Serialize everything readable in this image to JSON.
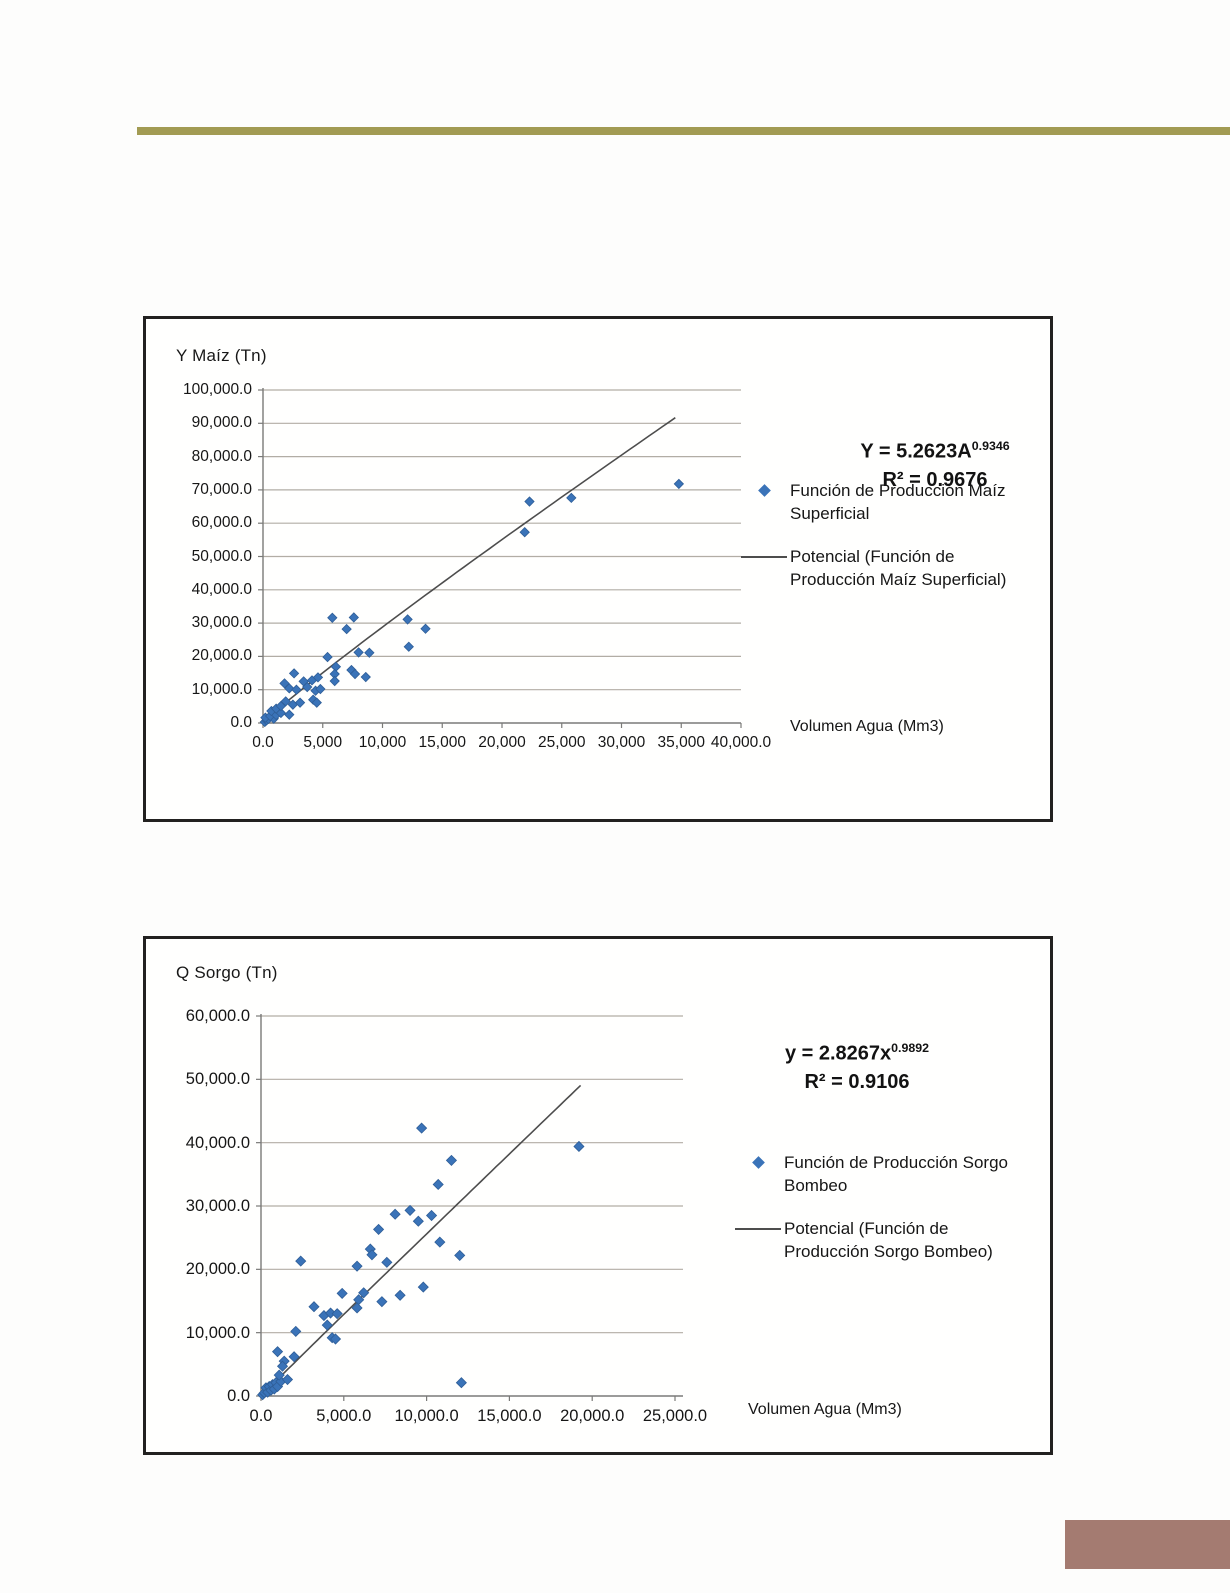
{
  "page": {
    "top_rule_color": "#a29b53",
    "corner_block_color": "#a47b71",
    "marker_color": "#3a73b8",
    "marker_edge_color": "#2f5e97",
    "trendline_color": "#4d4d4d",
    "grid_color": "#b2ada5",
    "axis_color": "#7a7a78"
  },
  "charts": [
    {
      "title": "Y Maíz (Tn)",
      "equation": {
        "base": "Y = 5.2623A",
        "exponent": "0.9346"
      },
      "r_squared": "R² = 0.9676",
      "x_axis_label": "Volumen Agua (Mm3)",
      "legend": [
        {
          "marker": "diamond",
          "label": "Función de Producción Maíz Superficial"
        },
        {
          "marker": "line",
          "label": "Potencial (Función de Producción Maíz Superficial)"
        }
      ],
      "y_tick_labels": [
        "100,000.0",
        "90,000.0",
        "80,000.0",
        "70,000.0",
        "60,000.0",
        "50,000.0",
        "40,000.0",
        "30,000.0",
        "20,000.0",
        "10,000.0",
        "0.0"
      ],
      "x_tick_labels": [
        "0.0",
        "5,000",
        "10,000",
        "15,000",
        "20,000",
        "25,000",
        "30,000",
        "35,000",
        "40,000.0"
      ]
    },
    {
      "title": "Q Sorgo (Tn)",
      "equation": {
        "base": "y = 2.8267x",
        "exponent": "0.9892"
      },
      "r_squared": "R² = 0.9106",
      "x_axis_label": "Volumen Agua (Mm3)",
      "legend": [
        {
          "marker": "diamond",
          "label": "Función de Producción Sorgo Bombeo"
        },
        {
          "marker": "line",
          "label": "Potencial (Función de Producción Sorgo Bombeo)"
        }
      ],
      "y_tick_labels": [
        "60,000.0",
        "50,000.0",
        "40,000.0",
        "30,000.0",
        "20,000.0",
        "10,000.0",
        "0.0"
      ],
      "x_tick_labels": [
        "0.0",
        "5,000.0",
        "10,000.0",
        "15,000.0",
        "20,000.0",
        "25,000.0"
      ]
    }
  ],
  "chart_data": [
    {
      "type": "scatter",
      "title": "Y Maíz (Tn)",
      "xlabel": "Volumen Agua (Mm3)",
      "ylabel": "Y Maíz (Tn)",
      "xlim": [
        0,
        40000
      ],
      "ylim": [
        0,
        100000
      ],
      "grid": true,
      "legend_position": "right",
      "equation": "Y = 5.2623A^0.9346",
      "r2": 0.9676,
      "series": [
        {
          "name": "Función de Producción Maíz Superficial",
          "points": [
            [
              150,
              300
            ],
            [
              300,
              800
            ],
            [
              450,
              1200
            ],
            [
              200,
              1600
            ],
            [
              900,
              1300
            ],
            [
              600,
              2100
            ],
            [
              1100,
              2400
            ],
            [
              1500,
              3000
            ],
            [
              2200,
              2500
            ],
            [
              700,
              3600
            ],
            [
              1100,
              4300
            ],
            [
              1500,
              5100
            ],
            [
              1900,
              6500
            ],
            [
              2500,
              5500
            ],
            [
              3100,
              6100
            ],
            [
              4200,
              7000
            ],
            [
              4500,
              6100
            ],
            [
              2200,
              10400
            ],
            [
              2800,
              10000
            ],
            [
              1800,
              11900
            ],
            [
              2600,
              14900
            ],
            [
              3400,
              12500
            ],
            [
              4100,
              12800
            ],
            [
              4600,
              13700
            ],
            [
              3700,
              10800
            ],
            [
              4400,
              9700
            ],
            [
              4800,
              10200
            ],
            [
              5400,
              19800
            ],
            [
              5800,
              31600
            ],
            [
              7600,
              31700
            ],
            [
              7000,
              28200
            ],
            [
              6100,
              16900
            ],
            [
              6000,
              14700
            ],
            [
              6000,
              12600
            ],
            [
              7400,
              15900
            ],
            [
              7700,
              14700
            ],
            [
              8600,
              13800
            ],
            [
              8000,
              21200
            ],
            [
              8900,
              21100
            ],
            [
              12100,
              31100
            ],
            [
              13600,
              28300
            ],
            [
              12200,
              22900
            ],
            [
              21900,
              57300
            ],
            [
              22300,
              66500
            ],
            [
              25800,
              67600
            ],
            [
              34800,
              71800
            ]
          ]
        }
      ],
      "trendline": {
        "kind": "power",
        "a": 5.2623,
        "b": 0.9346,
        "x_min": 150,
        "x_max": 34500,
        "name": "Potencial (Función de Producción Maíz Superficial)"
      }
    },
    {
      "type": "scatter",
      "title": "Q Sorgo (Tn)",
      "xlabel": "Volumen Agua (Mm3)",
      "ylabel": "Q Sorgo (Tn)",
      "xlim": [
        0,
        25000
      ],
      "ylim": [
        0,
        60000
      ],
      "grid": true,
      "legend_position": "right",
      "equation": "y = 2.8267x^0.9892",
      "r2": 0.9106,
      "series": [
        {
          "name": "Función de Producción Sorgo Bombeo",
          "points": [
            [
              100,
              200
            ],
            [
              200,
              500
            ],
            [
              300,
              1300
            ],
            [
              400,
              600
            ],
            [
              500,
              1500
            ],
            [
              600,
              900
            ],
            [
              700,
              1800
            ],
            [
              800,
              1100
            ],
            [
              900,
              2100
            ],
            [
              1000,
              1500
            ],
            [
              1200,
              2300
            ],
            [
              1600,
              2600
            ],
            [
              1100,
              3300
            ],
            [
              1000,
              7000
            ],
            [
              1400,
              5500
            ],
            [
              1300,
              4700
            ],
            [
              2000,
              6200
            ],
            [
              2100,
              10200
            ],
            [
              2400,
              21300
            ],
            [
              3200,
              14100
            ],
            [
              3800,
              12700
            ],
            [
              4200,
              13100
            ],
            [
              4600,
              13000
            ],
            [
              4000,
              11200
            ],
            [
              4300,
              9200
            ],
            [
              4500,
              9000
            ],
            [
              4900,
              16200
            ],
            [
              5800,
              20500
            ],
            [
              5900,
              15200
            ],
            [
              5800,
              13900
            ],
            [
              6200,
              16300
            ],
            [
              6600,
              23200
            ],
            [
              6700,
              22300
            ],
            [
              7100,
              26300
            ],
            [
              7300,
              14900
            ],
            [
              7600,
              21100
            ],
            [
              8100,
              28700
            ],
            [
              8400,
              15900
            ],
            [
              9000,
              29300
            ],
            [
              9500,
              27600
            ],
            [
              9700,
              42300
            ],
            [
              9800,
              17200
            ],
            [
              10300,
              28500
            ],
            [
              10700,
              33400
            ],
            [
              10800,
              24300
            ],
            [
              11500,
              37200
            ],
            [
              12000,
              22200
            ],
            [
              12100,
              2100
            ],
            [
              19200,
              39400
            ]
          ]
        }
      ],
      "trendline": {
        "kind": "power",
        "a": 2.8267,
        "b": 0.9892,
        "x_min": 120,
        "x_max": 19300,
        "name": "Potencial (Función de Producción Sorgo Bombeo)"
      }
    }
  ]
}
